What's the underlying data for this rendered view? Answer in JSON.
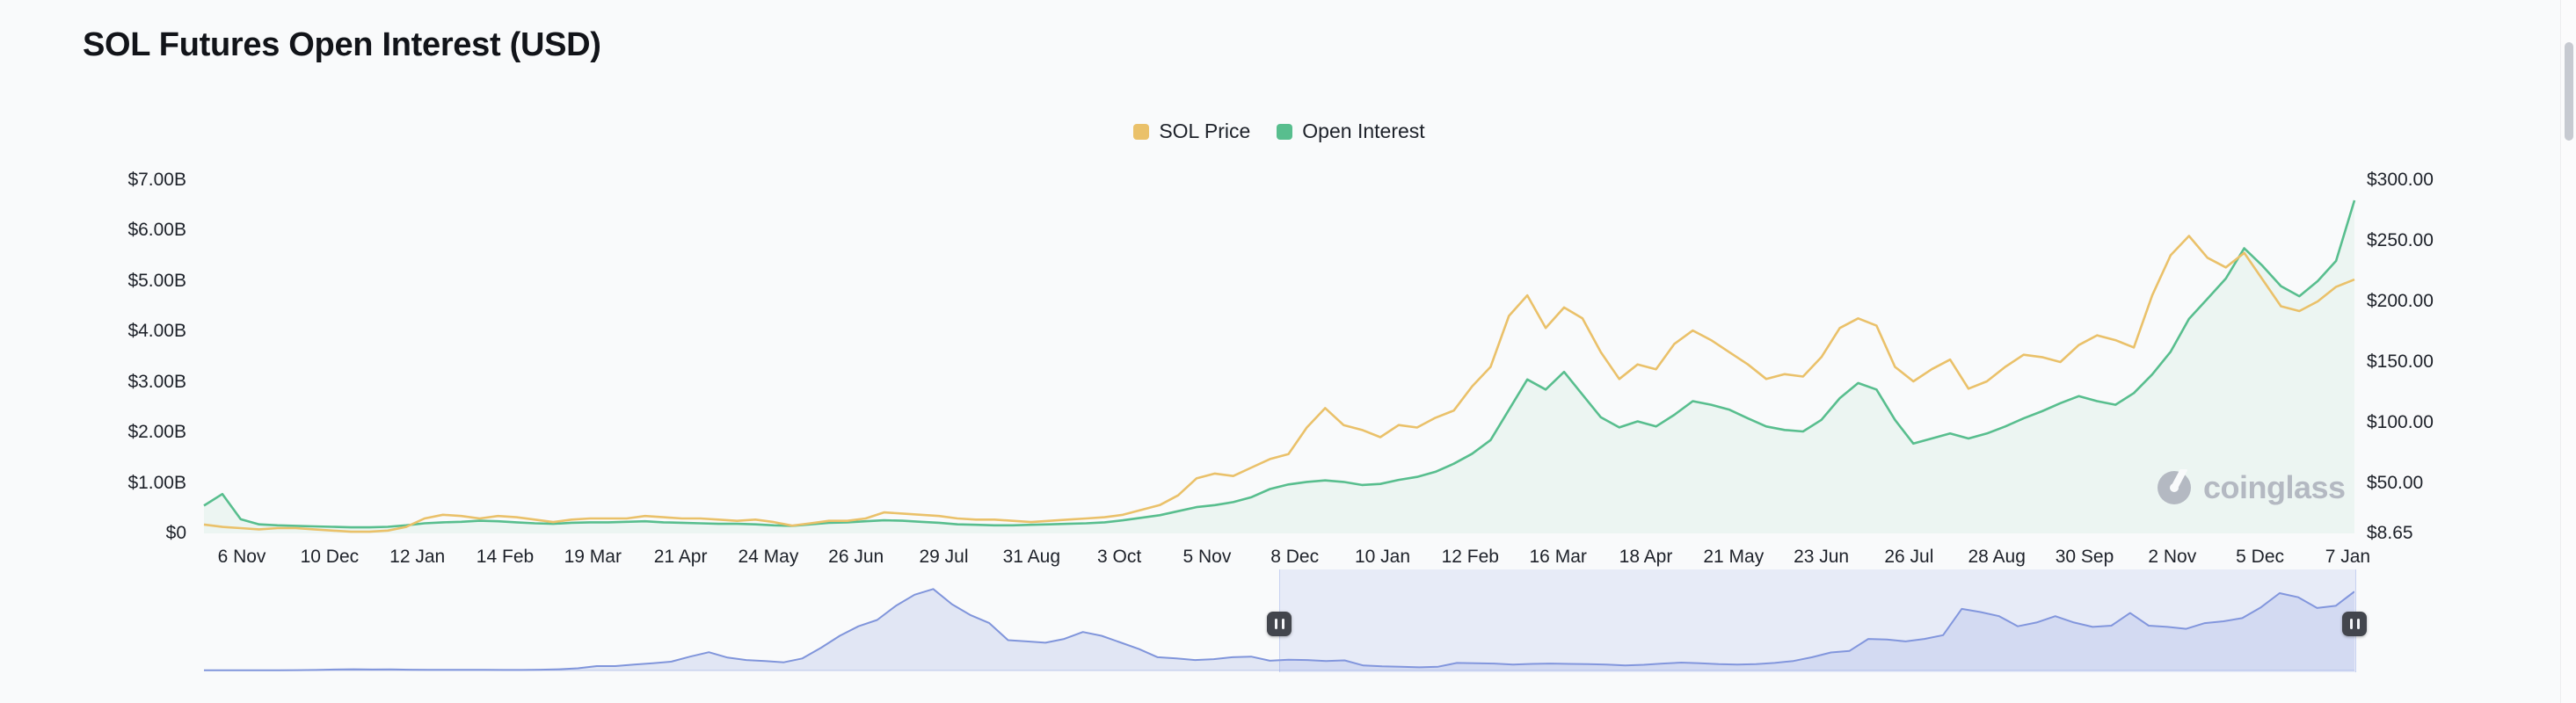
{
  "page": {
    "title": "SOL Futures Open Interest (USD)"
  },
  "legend": [
    {
      "label": "SOL Price",
      "color": "#EAC16A"
    },
    {
      "label": "Open Interest",
      "color": "#58BE8E"
    }
  ],
  "watermark": {
    "brand": "coinglass"
  },
  "chart_data": {
    "type": "line",
    "title": "SOL Futures Open Interest (USD)",
    "grid": false,
    "legend_position": "top-center",
    "x_tick_labels": [
      "6 Nov",
      "10 Dec",
      "12 Jan",
      "14 Feb",
      "19 Mar",
      "21 Apr",
      "24 May",
      "26 Jun",
      "29 Jul",
      "31 Aug",
      "3 Oct",
      "5 Nov",
      "8 Dec",
      "10 Jan",
      "12 Feb",
      "16 Mar",
      "18 Apr",
      "21 May",
      "23 Jun",
      "26 Jul",
      "28 Aug",
      "30 Sep",
      "2 Nov",
      "5 Dec",
      "7 Jan"
    ],
    "x_range_note": "approx Nov 2022 to 7 Jan 2025, points evenly spaced (~weekly)",
    "left_axis": {
      "title": "Open Interest (USD)",
      "unit": "billions USD",
      "min": 0,
      "max": 7,
      "ticks": [
        "$7.00B",
        "$6.00B",
        "$5.00B",
        "$4.00B",
        "$3.00B",
        "$2.00B",
        "$1.00B",
        "$0"
      ]
    },
    "right_axis": {
      "title": "SOL Price (USD)",
      "min": 8.65,
      "max": 300,
      "ticks": [
        "$300.00",
        "$250.00",
        "$200.00",
        "$150.00",
        "$100.00",
        "$50.00",
        "$8.65"
      ],
      "tick_values": [
        300,
        250,
        200,
        150,
        100,
        50,
        8.65
      ]
    },
    "series": [
      {
        "name": "SOL Price",
        "axis": "right",
        "color": "#EAC16A",
        "style": "line",
        "values": [
          16,
          14,
          13,
          12,
          13,
          13,
          12,
          11,
          10,
          10,
          11,
          14,
          21,
          24,
          23,
          21,
          23,
          22,
          20,
          18,
          20,
          21,
          21,
          21,
          23,
          22,
          21,
          21,
          20,
          19,
          20,
          18,
          15,
          17,
          19,
          19,
          21,
          26,
          25,
          24,
          23,
          21,
          20,
          20,
          19,
          18,
          19,
          20,
          21,
          22,
          24,
          28,
          32,
          40,
          54,
          58,
          56,
          63,
          70,
          74,
          96,
          112,
          98,
          94,
          88,
          98,
          96,
          104,
          110,
          130,
          146,
          188,
          205,
          178,
          195,
          186,
          158,
          136,
          148,
          144,
          165,
          176,
          168,
          158,
          148,
          136,
          140,
          138,
          154,
          178,
          186,
          180,
          146,
          134,
          144,
          152,
          128,
          134,
          146,
          156,
          154,
          150,
          164,
          172,
          168,
          162,
          205,
          238,
          254,
          236,
          228,
          240,
          218,
          196,
          192,
          200,
          212,
          218
        ]
      },
      {
        "name": "Open Interest",
        "axis": "left",
        "color": "#58BE8E",
        "style": "area",
        "values": [
          0.55,
          0.78,
          0.28,
          0.18,
          0.16,
          0.15,
          0.14,
          0.13,
          0.12,
          0.12,
          0.13,
          0.16,
          0.2,
          0.22,
          0.23,
          0.25,
          0.24,
          0.22,
          0.2,
          0.19,
          0.21,
          0.22,
          0.22,
          0.23,
          0.24,
          0.22,
          0.21,
          0.2,
          0.19,
          0.19,
          0.18,
          0.16,
          0.15,
          0.18,
          0.21,
          0.22,
          0.24,
          0.26,
          0.25,
          0.23,
          0.21,
          0.18,
          0.17,
          0.16,
          0.16,
          0.17,
          0.18,
          0.19,
          0.2,
          0.22,
          0.26,
          0.31,
          0.36,
          0.44,
          0.52,
          0.56,
          0.62,
          0.72,
          0.88,
          0.97,
          1.02,
          1.05,
          1.02,
          0.96,
          0.98,
          1.06,
          1.12,
          1.22,
          1.38,
          1.58,
          1.85,
          2.45,
          3.05,
          2.85,
          3.2,
          2.75,
          2.3,
          2.1,
          2.22,
          2.12,
          2.35,
          2.62,
          2.55,
          2.45,
          2.28,
          2.12,
          2.05,
          2.02,
          2.25,
          2.68,
          2.98,
          2.85,
          2.25,
          1.78,
          1.88,
          1.98,
          1.88,
          1.98,
          2.12,
          2.28,
          2.42,
          2.58,
          2.72,
          2.62,
          2.55,
          2.78,
          3.15,
          3.6,
          4.25,
          4.65,
          5.05,
          5.65,
          5.3,
          4.9,
          4.7,
          5.0,
          5.4,
          6.6
        ]
      }
    ],
    "navigator": {
      "description": "range-selector mini chart of full SOL price history",
      "color": "#8095DB",
      "max": 270,
      "selection": [
        0.5,
        1.0
      ],
      "values": [
        0.8,
        0.7,
        0.6,
        0.7,
        0.8,
        1.0,
        1.6,
        3.2,
        3.8,
        3.2,
        3.4,
        2.6,
        2.2,
        2.0,
        2.1,
        1.9,
        1.6,
        1.8,
        2.5,
        3.8,
        7,
        14,
        14,
        19,
        23,
        28,
        44,
        58,
        41,
        33,
        30,
        26,
        38,
        72,
        110,
        140,
        160,
        205,
        240,
        258,
        210,
        175,
        150,
        96,
        92,
        88,
        100,
        122,
        110,
        89,
        68,
        42,
        38,
        33,
        36,
        42,
        44,
        31,
        34,
        33,
        30,
        32,
        16,
        13,
        12,
        10,
        12,
        24,
        23,
        22,
        19,
        21,
        22,
        21,
        20,
        19,
        16,
        18,
        22,
        25,
        23,
        20,
        19,
        20,
        24,
        30,
        42,
        57,
        62,
        100,
        98,
        92,
        100,
        112,
        195,
        185,
        172,
        140,
        152,
        172,
        152,
        138,
        142,
        182,
        142,
        138,
        132,
        150,
        156,
        166,
        200,
        245,
        232,
        198,
        205,
        250
      ]
    }
  }
}
